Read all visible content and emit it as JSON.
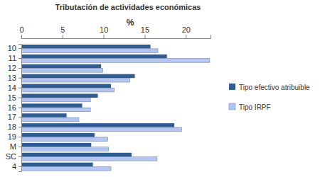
{
  "chart_data": {
    "type": "bar",
    "orientation": "horizontal",
    "title": "Tributación de actividades económicas",
    "xlabel": "%",
    "categories": [
      "10",
      "11",
      "12",
      "13",
      "14",
      "15",
      "16",
      "17",
      "18",
      "19",
      "M",
      "SC",
      "4"
    ],
    "series": [
      {
        "name": "Tipo efectivo atribuible",
        "color": "#305d91",
        "values": [
          15.7,
          17.7,
          9.7,
          13.8,
          10.9,
          9.3,
          7.4,
          5.5,
          18.6,
          8.9,
          8.5,
          13.4,
          8.7
        ]
      },
      {
        "name": "Tipo IRPF",
        "color": "#b4c6f0",
        "values": [
          16.6,
          22.9,
          9.9,
          13.2,
          11.3,
          8.4,
          8.4,
          7.0,
          19.5,
          10.5,
          10.6,
          16.5,
          10.9
        ]
      }
    ],
    "xlim": [
      0,
      23
    ],
    "xticks": [
      0,
      5,
      10,
      15,
      20
    ],
    "legend": "right",
    "grid": false
  }
}
